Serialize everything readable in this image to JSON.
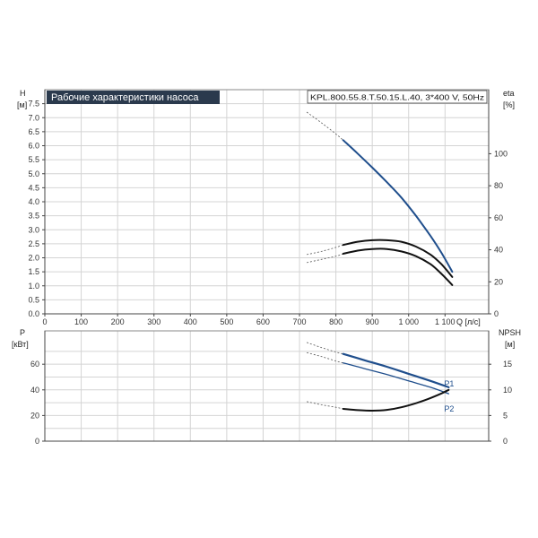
{
  "chart_data": [
    {
      "type": "line",
      "panel": "head-efficiency",
      "title": "Рабочие характеристики насоса",
      "model_label": "KPL.800.55.8.T.50.15.L.40, 3*400 V, 50Hz",
      "xlabel": "Q [л/с]",
      "ylabel_left": "H",
      "ylabel_left_unit": "[м]",
      "ylabel_right": "eta",
      "ylabel_right_unit": "[%]",
      "xlim": [
        0,
        1220
      ],
      "ylim_left": [
        0,
        8
      ],
      "ylim_right": [
        0,
        140
      ],
      "x_ticks": [
        "0",
        "100",
        "200",
        "300",
        "400",
        "500",
        "600",
        "700",
        "800",
        "900",
        "1 000",
        "1 100"
      ],
      "y_ticks_left": [
        "0.0",
        "0.5",
        "1.0",
        "1.5",
        "2.0",
        "2.5",
        "3.0",
        "3.5",
        "4.0",
        "4.5",
        "5.0",
        "5.5",
        "6.0",
        "6.5",
        "7.0",
        "7.5"
      ],
      "y_ticks_right": [
        "0",
        "20",
        "40",
        "60",
        "80",
        "100"
      ],
      "series": [
        {
          "role": "H",
          "axis": "left",
          "color": "#1f4e8c",
          "dashed_points": [
            [
              720,
              7.2
            ],
            [
              760,
              6.82
            ],
            [
              800,
              6.42
            ],
            [
              820,
              6.2
            ]
          ],
          "points": [
            [
              820,
              6.2
            ],
            [
              860,
              5.72
            ],
            [
              900,
              5.22
            ],
            [
              940,
              4.7
            ],
            [
              980,
              4.15
            ],
            [
              1020,
              3.5
            ],
            [
              1060,
              2.78
            ],
            [
              1090,
              2.18
            ],
            [
              1120,
              1.5
            ]
          ]
        },
        {
          "role": "eta-upper",
          "axis": "right",
          "color": "#111111",
          "dashed_points": [
            [
              720,
              37
            ],
            [
              760,
              39
            ],
            [
              800,
              41.5
            ],
            [
              820,
              43
            ]
          ],
          "points": [
            [
              820,
              43
            ],
            [
              860,
              45
            ],
            [
              900,
              46
            ],
            [
              940,
              46
            ],
            [
              980,
              45
            ],
            [
              1020,
              42
            ],
            [
              1060,
              37
            ],
            [
              1090,
              31
            ],
            [
              1120,
              23
            ]
          ]
        },
        {
          "role": "eta-lower",
          "axis": "right",
          "color": "#111111",
          "dashed_points": [
            [
              720,
              32
            ],
            [
              760,
              34
            ],
            [
              800,
              36
            ],
            [
              820,
              37.5
            ]
          ],
          "points": [
            [
              820,
              37.5
            ],
            [
              860,
              39.5
            ],
            [
              900,
              40.5
            ],
            [
              940,
              40.5
            ],
            [
              980,
              39
            ],
            [
              1020,
              36
            ],
            [
              1060,
              31
            ],
            [
              1090,
              25
            ],
            [
              1120,
              18
            ]
          ]
        }
      ]
    },
    {
      "type": "line",
      "panel": "power-npsh",
      "ylabel_left": "P",
      "ylabel_left_unit": "[кВт]",
      "ylabel_right": "NPSH",
      "ylabel_right_unit": "[м]",
      "xlim": [
        0,
        1220
      ],
      "ylim_left": [
        0,
        86
      ],
      "ylim_right": [
        0,
        21.5
      ],
      "y_ticks_left": [
        "0",
        "20",
        "40",
        "60"
      ],
      "y_ticks_right": [
        "0",
        "5",
        "10",
        "15"
      ],
      "series": [
        {
          "name": "P1",
          "axis": "left",
          "color": "#1f4e8c",
          "width": 2.2,
          "dashed_points": [
            [
              720,
              77
            ],
            [
              760,
              73
            ],
            [
              800,
              69.5
            ],
            [
              820,
              68
            ]
          ],
          "points": [
            [
              820,
              68
            ],
            [
              880,
              63
            ],
            [
              940,
              58
            ],
            [
              1000,
              52.5
            ],
            [
              1060,
              47
            ],
            [
              1110,
              42
            ]
          ]
        },
        {
          "name": "P2",
          "axis": "left",
          "color": "#1f4e8c",
          "width": 1.3,
          "dashed_points": [
            [
              720,
              69
            ],
            [
              760,
              66
            ],
            [
              800,
              62.5
            ],
            [
              820,
              61
            ]
          ],
          "points": [
            [
              820,
              61
            ],
            [
              880,
              56.5
            ],
            [
              940,
              52
            ],
            [
              1000,
              47
            ],
            [
              1060,
              42
            ],
            [
              1110,
              37
            ]
          ]
        },
        {
          "role": "NPSH",
          "axis": "right",
          "color": "#111111",
          "width": 2,
          "dashed_points": [
            [
              720,
              7.7
            ],
            [
              760,
              7.1
            ],
            [
              800,
              6.6
            ],
            [
              820,
              6.3
            ]
          ],
          "points": [
            [
              820,
              6.3
            ],
            [
              860,
              6.05
            ],
            [
              900,
              5.95
            ],
            [
              940,
              6.1
            ],
            [
              980,
              6.6
            ],
            [
              1020,
              7.4
            ],
            [
              1060,
              8.4
            ],
            [
              1090,
              9.3
            ],
            [
              1110,
              10.0
            ]
          ]
        }
      ]
    }
  ]
}
